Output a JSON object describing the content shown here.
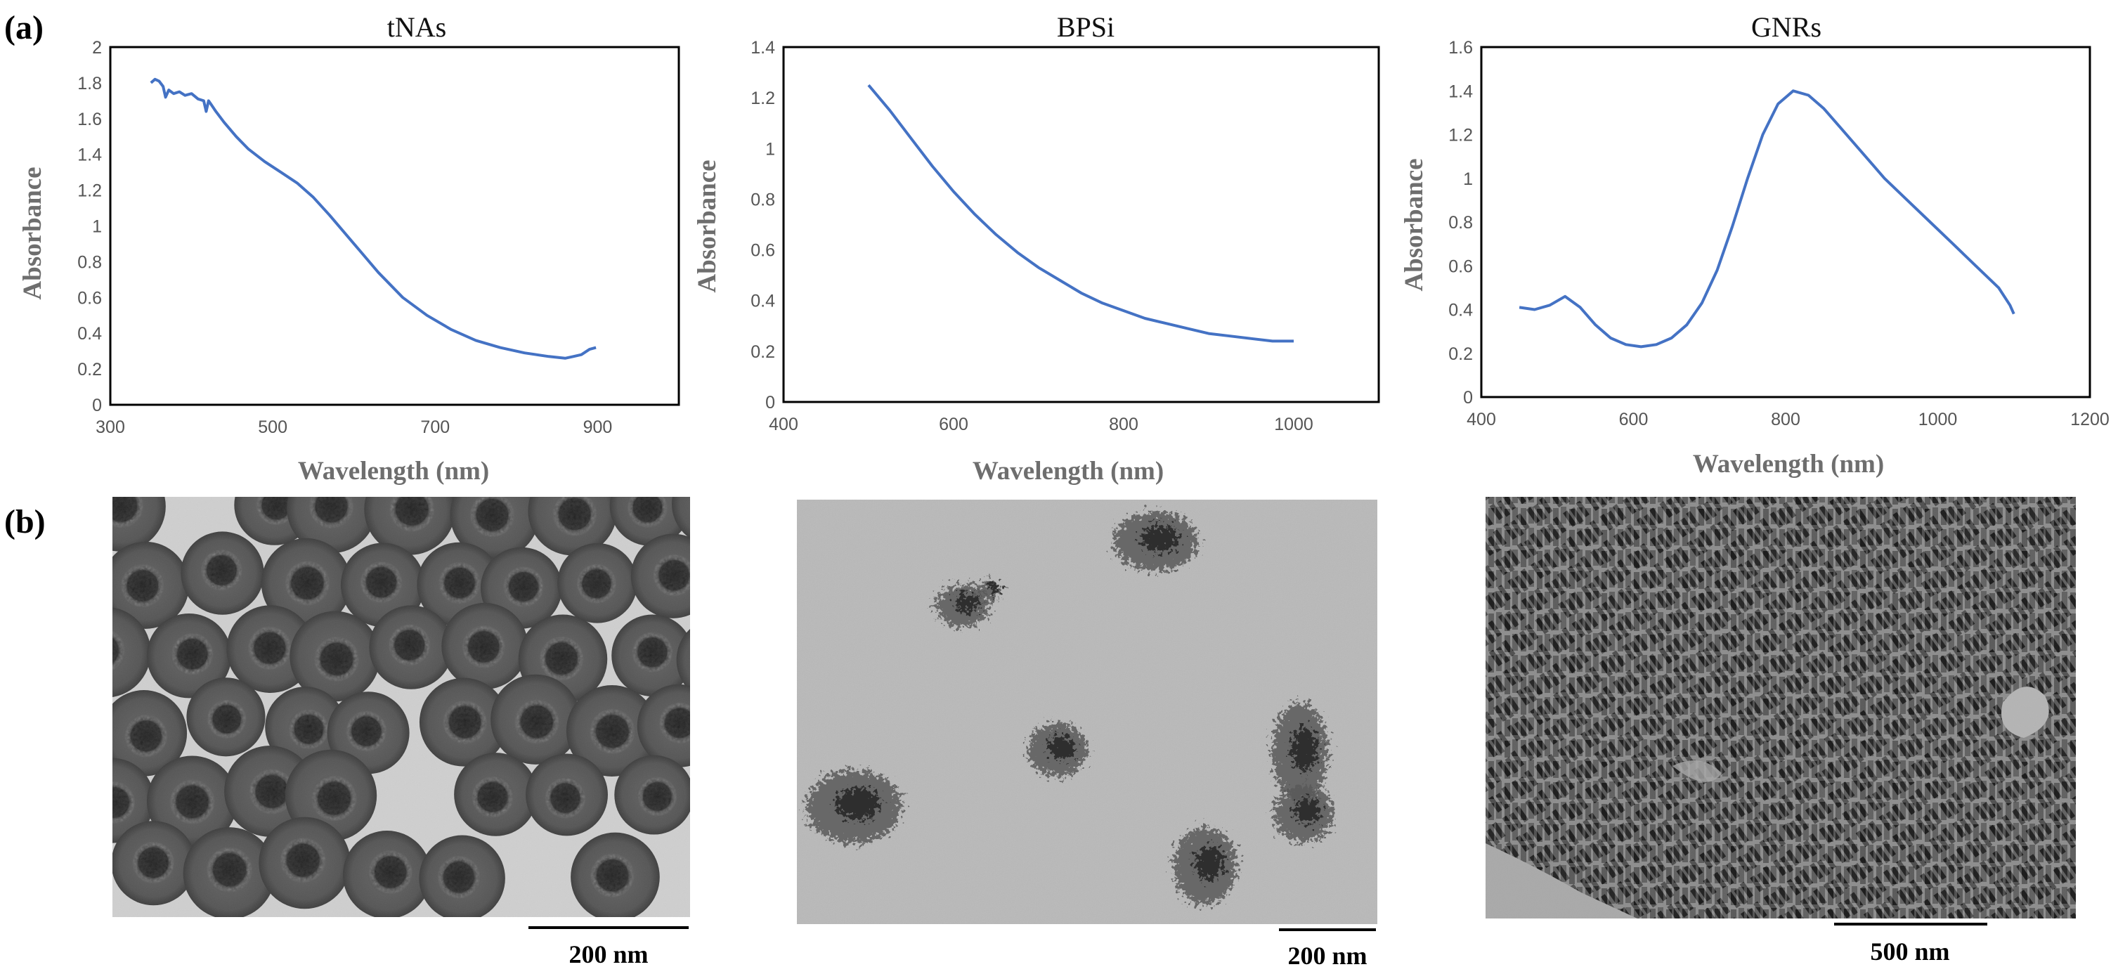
{
  "panel_labels": {
    "a": "(a)",
    "b": "(b)"
  },
  "chart_data": [
    {
      "type": "line",
      "title": "tNAs",
      "xlabel": "Wavelength (nm)",
      "ylabel": "Absorbance",
      "xlim": [
        300,
        1000
      ],
      "ylim": [
        0,
        2
      ],
      "xticks": [
        300,
        500,
        700,
        900
      ],
      "yticks": [
        0,
        0.2,
        0.4,
        0.6,
        0.8,
        1,
        1.2,
        1.4,
        1.6,
        1.8,
        2
      ],
      "grid": false,
      "color": "#4472c4",
      "series": [
        {
          "x": [
            350,
            355,
            360,
            365,
            368,
            372,
            378,
            385,
            392,
            400,
            408,
            415,
            418,
            421,
            424,
            430,
            440,
            455,
            470,
            490,
            510,
            530,
            550,
            570,
            600,
            630,
            660,
            690,
            720,
            750,
            780,
            810,
            840,
            860,
            870,
            880,
            890,
            898
          ],
          "y": [
            1.8,
            1.82,
            1.81,
            1.78,
            1.72,
            1.76,
            1.74,
            1.75,
            1.73,
            1.74,
            1.71,
            1.7,
            1.64,
            1.7,
            1.68,
            1.64,
            1.58,
            1.5,
            1.43,
            1.36,
            1.3,
            1.24,
            1.16,
            1.06,
            0.9,
            0.74,
            0.6,
            0.5,
            0.42,
            0.36,
            0.32,
            0.29,
            0.27,
            0.26,
            0.27,
            0.28,
            0.31,
            0.32
          ]
        }
      ]
    },
    {
      "type": "line",
      "title": "BPSi",
      "xlabel": "Wavelength (nm)",
      "ylabel": "Absorbance",
      "xlim": [
        400,
        1100
      ],
      "ylim": [
        0,
        1.4
      ],
      "xticks": [
        400,
        600,
        800,
        1000
      ],
      "yticks": [
        0,
        0.2,
        0.4,
        0.6,
        0.8,
        1,
        1.2,
        1.4
      ],
      "grid": false,
      "color": "#4472c4",
      "series": [
        {
          "x": [
            500,
            525,
            550,
            575,
            600,
            625,
            650,
            675,
            700,
            725,
            750,
            775,
            800,
            825,
            850,
            875,
            900,
            925,
            950,
            975,
            1000
          ],
          "y": [
            1.25,
            1.15,
            1.04,
            0.93,
            0.83,
            0.74,
            0.66,
            0.59,
            0.53,
            0.48,
            0.43,
            0.39,
            0.36,
            0.33,
            0.31,
            0.29,
            0.27,
            0.26,
            0.25,
            0.24,
            0.24
          ]
        }
      ]
    },
    {
      "type": "line",
      "title": "GNRs",
      "xlabel": "Wavelength (nm)",
      "ylabel": "Absorbance",
      "xlim": [
        400,
        1200
      ],
      "ylim": [
        0,
        1.6
      ],
      "xticks": [
        400,
        600,
        800,
        1000,
        1200
      ],
      "yticks": [
        0,
        0.2,
        0.4,
        0.6,
        0.8,
        1,
        1.2,
        1.4,
        1.6
      ],
      "grid": false,
      "color": "#4472c4",
      "series": [
        {
          "x": [
            450,
            470,
            490,
            510,
            530,
            550,
            570,
            590,
            610,
            630,
            650,
            670,
            690,
            710,
            730,
            750,
            770,
            790,
            810,
            830,
            850,
            870,
            900,
            930,
            960,
            990,
            1020,
            1050,
            1080,
            1095,
            1100
          ],
          "y": [
            0.41,
            0.4,
            0.42,
            0.46,
            0.41,
            0.33,
            0.27,
            0.24,
            0.23,
            0.24,
            0.27,
            0.33,
            0.43,
            0.58,
            0.78,
            1.0,
            1.2,
            1.34,
            1.4,
            1.38,
            1.32,
            1.24,
            1.12,
            1.0,
            0.9,
            0.8,
            0.7,
            0.6,
            0.5,
            0.42,
            0.38
          ]
        }
      ]
    }
  ],
  "micrographs": [
    {
      "scale_bar": "200 nm",
      "subject": "hollow spheres"
    },
    {
      "scale_bar": "200 nm",
      "subject": "sheet clusters"
    },
    {
      "scale_bar": "500 nm",
      "subject": "nanorods"
    }
  ]
}
